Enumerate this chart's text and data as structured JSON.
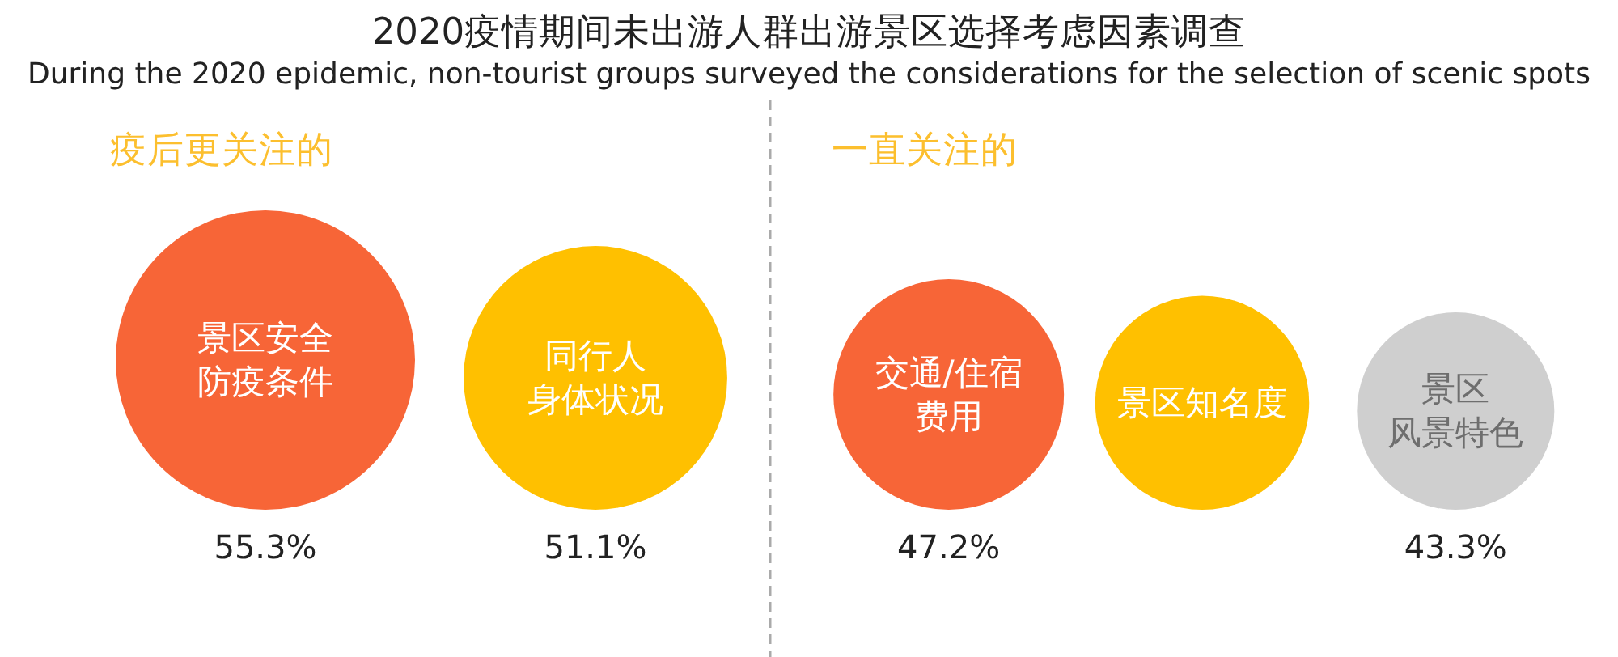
{
  "chart_data": [
    {
      "type": "other",
      "title": "2020疫情期间未出游人群出游景区选择考虑因素调查",
      "subtitle": "During the 2020 epidemic, non-tourist groups surveyed the considerations for the selection of scenic spots",
      "categories": [
        "景区安全防疫条件",
        "同行人身体状况"
      ],
      "values": [
        55.3,
        51.1
      ],
      "value_labels": [
        "55.3%",
        "51.1%"
      ],
      "colors": [
        "#f76537",
        "#ffc000"
      ],
      "annotations": [
        "疫后更关注的"
      ]
    },
    {
      "type": "other",
      "categories": [
        "交通/住宿费用",
        "景区知名度",
        "景区风景特色"
      ],
      "values": [
        47.2,
        null,
        43.3
      ],
      "value_labels": [
        "47.2%",
        null,
        "43.3%"
      ],
      "colors": [
        "#f76537",
        "#ffc000",
        "#cfcfcf"
      ],
      "annotations": [
        "一直关注的"
      ]
    }
  ]
}
